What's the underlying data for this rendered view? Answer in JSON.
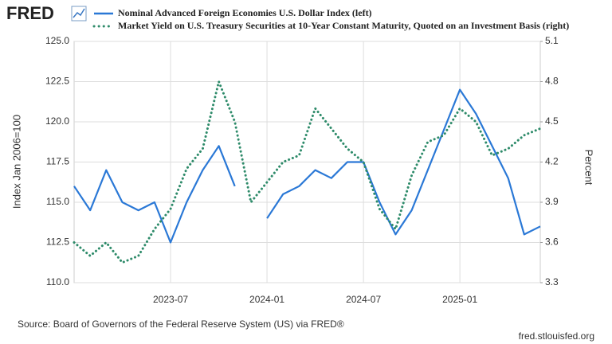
{
  "chart_data": {
    "type": "line",
    "logo": "FRED",
    "y_label": "Index Jan 2006=100",
    "y2_label": "Percent",
    "source": "Source: Board of Governors of the Federal Reserve System (US) via FRED®",
    "site": "fred.stlouisfed.org",
    "x": [
      "2023-01",
      "2023-02",
      "2023-03",
      "2023-04",
      "2023-05",
      "2023-06",
      "2023-07",
      "2023-08",
      "2023-09",
      "2023-10",
      "2023-11",
      "2023-12",
      "2024-01",
      "2024-02",
      "2024-03",
      "2024-04",
      "2024-05",
      "2024-06",
      "2024-07",
      "2024-08",
      "2024-09",
      "2024-10",
      "2024-11",
      "2024-12",
      "2025-01",
      "2025-02",
      "2025-03",
      "2025-04",
      "2025-05",
      "2025-06"
    ],
    "xlim": [
      "2023-01",
      "2025-06"
    ],
    "xticks": [
      "2023-07",
      "2024-01",
      "2024-07",
      "2025-01"
    ],
    "ylim": [
      110,
      125
    ],
    "yticks": [
      {
        "value": 110,
        "label": "110.0"
      },
      {
        "value": 112.5,
        "label": "112.5"
      },
      {
        "value": 115,
        "label": "115.0"
      },
      {
        "value": 117.5,
        "label": "117.5"
      },
      {
        "value": 120,
        "label": "120.0"
      },
      {
        "value": 122.5,
        "label": "122.5"
      },
      {
        "value": 125,
        "label": "125.0"
      }
    ],
    "y2lim": [
      3.3,
      5.1
    ],
    "y2ticks": [
      3.3,
      3.6,
      3.9,
      4.2,
      4.5,
      4.8,
      5.1
    ],
    "grid": true,
    "series": [
      {
        "name": "Nominal Advanced Foreign Economies U.S. Dollar Index (left)",
        "color": "#2a78d6",
        "style": "solid",
        "values": [
          116,
          114.5,
          117,
          115,
          114.5,
          115,
          112.5,
          115,
          117,
          118.5,
          116,
          null,
          114,
          115.5,
          116,
          117,
          116.5,
          117.5,
          117.5,
          115,
          113,
          114.5,
          117,
          119.5,
          122,
          120.5,
          118.5,
          116.5,
          113,
          113.5
        ]
      },
      {
        "name": "Market Yield on U.S. Treasury Securities at 10-Year Constant Maturity, Quoted on an Investment Basis (right)",
        "color": "#2e8b6a",
        "style": "dotted",
        "axis": "y2",
        "values": [
          3.6,
          3.5,
          3.6,
          3.45,
          3.5,
          3.7,
          3.85,
          4.15,
          4.3,
          4.8,
          4.5,
          3.9,
          4.05,
          4.2,
          4.25,
          4.6,
          4.45,
          4.3,
          4.2,
          3.85,
          3.7,
          4.1,
          4.35,
          4.4,
          4.6,
          4.5,
          4.25,
          4.3,
          4.4,
          4.45
        ]
      }
    ]
  }
}
